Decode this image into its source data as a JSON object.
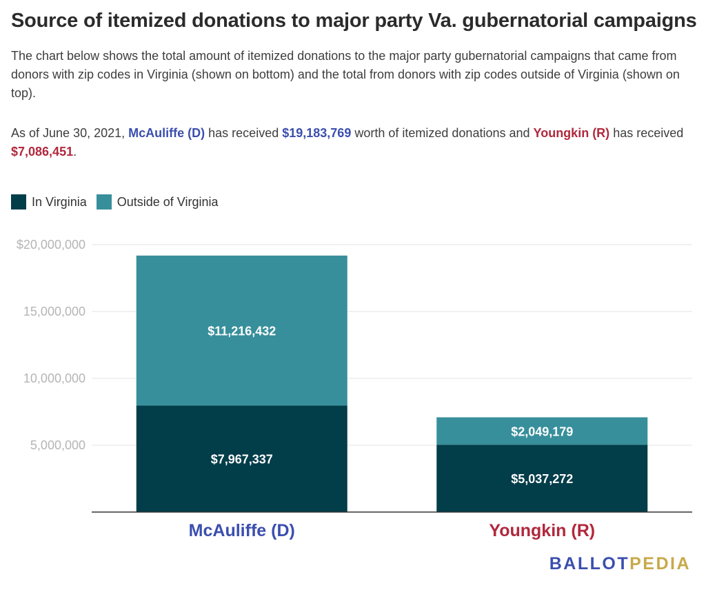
{
  "header": {
    "title": "Source of itemized donations to major party Va. gubernatorial campaigns",
    "description": "The chart below shows the total amount of itemized donations to the major party gubernatorial campaigns that came from donors with zip codes in Virginia (shown on bottom) and the total from donors with zip codes outside of Virginia (shown on top).",
    "summary": {
      "prefix": "As of June 30, 2021,",
      "d_name": "McAuliffe (D)",
      "mid1": "has received",
      "d_total": "$19,183,769",
      "mid2": "worth of itemized donations and",
      "r_name": "Youngkin (R)",
      "mid3": "has received",
      "r_total": "$7,086,451",
      "suffix": "."
    }
  },
  "colors": {
    "in_virginia": "#023d4a",
    "outside_virginia": "#378f9b",
    "democrat": "#3b4eae",
    "republican": "#b1283d",
    "logo_dark": "#3b4eae",
    "logo_light": "#c8a94a"
  },
  "legend": [
    {
      "label": "In Virginia",
      "color": "#023d4a"
    },
    {
      "label": "Outside of Virginia",
      "color": "#378f9b"
    }
  ],
  "chart_data": {
    "type": "bar",
    "stacked": true,
    "categories": [
      "McAuliffe (D)",
      "Youngkin (R)"
    ],
    "category_colors": [
      "#3b4eae",
      "#b1283d"
    ],
    "series": [
      {
        "name": "In Virginia",
        "values": [
          7967337,
          5037272
        ],
        "labels": [
          "$7,967,337",
          "$5,037,272"
        ],
        "color": "#023d4a"
      },
      {
        "name": "Outside of Virginia",
        "values": [
          11216432,
          2049179
        ],
        "labels": [
          "$11,216,432",
          "$2,049,179"
        ],
        "color": "#378f9b"
      }
    ],
    "ylim": [
      0,
      20000000
    ],
    "yticks": [
      {
        "value": 20000000,
        "label": "$20,000,000"
      },
      {
        "value": 15000000,
        "label": "15,000,000"
      },
      {
        "value": 10000000,
        "label": "10,000,000"
      },
      {
        "value": 5000000,
        "label": "5,000,000"
      }
    ],
    "grid": true,
    "legend_position": "top-left",
    "title": "",
    "xlabel": "",
    "ylabel": ""
  },
  "logo": {
    "part1": "BALLOT",
    "part2": "PEDIA"
  }
}
